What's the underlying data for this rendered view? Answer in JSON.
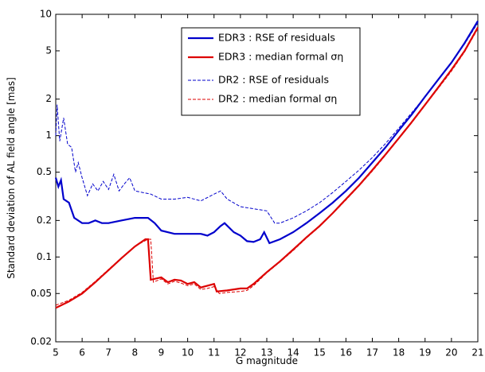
{
  "chart_data": {
    "type": "line",
    "x_label": "G magnitude",
    "y_label": "Standard deviation of AL field angle [mas]",
    "yscale": "log",
    "grid": false,
    "legend": "upper center",
    "xlim": [
      5,
      21
    ],
    "ylim": [
      0.02,
      10
    ],
    "xticks": [
      5,
      6,
      7,
      8,
      9,
      10,
      11,
      12,
      13,
      14,
      15,
      16,
      17,
      18,
      19,
      20,
      21
    ],
    "yticks": [
      0.02,
      0.05,
      0.1,
      0.2,
      0.5,
      1,
      2,
      5,
      10
    ],
    "series": [
      {
        "name": "EDR3 :  RSE of residuals",
        "color": "#0000cc",
        "dash": "solid",
        "x": [
          5,
          5.1,
          5.2,
          5.3,
          5.5,
          5.7,
          6,
          6.25,
          6.5,
          6.75,
          7,
          7.5,
          8,
          8.5,
          8.75,
          9,
          9.5,
          10,
          10.5,
          10.75,
          11,
          11.25,
          11.4,
          11.75,
          12,
          12.25,
          12.5,
          12.75,
          12.9,
          13.1,
          13.5,
          14,
          14.5,
          15,
          15.5,
          16,
          16.5,
          17,
          17.5,
          18,
          18.5,
          19,
          19.5,
          20,
          20.5,
          21
        ],
        "values": [
          0.45,
          0.38,
          0.43,
          0.3,
          0.28,
          0.21,
          0.19,
          0.19,
          0.2,
          0.19,
          0.19,
          0.2,
          0.21,
          0.21,
          0.19,
          0.165,
          0.155,
          0.155,
          0.155,
          0.15,
          0.16,
          0.18,
          0.19,
          0.16,
          0.15,
          0.135,
          0.133,
          0.14,
          0.16,
          0.13,
          0.14,
          0.16,
          0.19,
          0.23,
          0.28,
          0.35,
          0.45,
          0.6,
          0.8,
          1.1,
          1.5,
          2.1,
          2.9,
          4.0,
          5.8,
          8.8
        ]
      },
      {
        "name": "EDR3 :  median formal ση",
        "color": "#dd0000",
        "dash": "solid",
        "x": [
          5,
          5.5,
          6,
          6.5,
          7,
          7.5,
          8,
          8.4,
          8.5,
          8.6,
          9,
          9.25,
          9.5,
          9.75,
          10,
          10.25,
          10.5,
          10.75,
          11,
          11.1,
          11.5,
          12,
          12.25,
          12.5,
          13,
          13.5,
          14,
          14.5,
          15,
          15.5,
          16,
          16.5,
          17,
          17.5,
          18,
          18.5,
          19,
          19.5,
          20,
          20.5,
          21
        ],
        "values": [
          0.038,
          0.043,
          0.05,
          0.062,
          0.078,
          0.098,
          0.122,
          0.14,
          0.14,
          0.065,
          0.068,
          0.062,
          0.065,
          0.064,
          0.06,
          0.062,
          0.056,
          0.058,
          0.06,
          0.052,
          0.053,
          0.055,
          0.055,
          0.06,
          0.075,
          0.092,
          0.115,
          0.145,
          0.18,
          0.23,
          0.3,
          0.39,
          0.52,
          0.7,
          0.95,
          1.3,
          1.8,
          2.5,
          3.5,
          5.0,
          7.8
        ]
      },
      {
        "name": "DR2 :  RSE of residuals",
        "color": "#0000cc",
        "dash": "dashed",
        "x": [
          5,
          5.05,
          5.15,
          5.3,
          5.45,
          5.6,
          5.75,
          5.85,
          6,
          6.2,
          6.4,
          6.6,
          6.8,
          7,
          7.2,
          7.4,
          7.6,
          7.8,
          8,
          8.3,
          8.6,
          9,
          9.5,
          10,
          10.5,
          11,
          11.25,
          11.5,
          12,
          12.5,
          13,
          13.3,
          13.5,
          14,
          14.5,
          15,
          15.5,
          16,
          16.5,
          17,
          17.5,
          18,
          18.5,
          19,
          19.5,
          20,
          20.5,
          21
        ],
        "values": [
          1.0,
          1.8,
          0.9,
          1.4,
          0.85,
          0.8,
          0.5,
          0.6,
          0.45,
          0.32,
          0.4,
          0.35,
          0.42,
          0.36,
          0.48,
          0.35,
          0.4,
          0.45,
          0.35,
          0.34,
          0.33,
          0.3,
          0.3,
          0.31,
          0.29,
          0.33,
          0.35,
          0.3,
          0.26,
          0.25,
          0.24,
          0.19,
          0.19,
          0.21,
          0.24,
          0.28,
          0.34,
          0.42,
          0.52,
          0.66,
          0.86,
          1.15,
          1.55,
          2.1,
          2.9,
          4.0,
          5.7,
          8.5
        ]
      },
      {
        "name": "DR2 :  median formal ση",
        "color": "#dd0000",
        "dash": "dashed",
        "x": [
          5,
          5.5,
          6,
          6.5,
          7,
          7.5,
          8,
          8.5,
          8.6,
          8.7,
          9,
          9.25,
          9.5,
          9.75,
          10,
          10.25,
          10.5,
          10.75,
          11,
          11.2,
          11.5,
          12,
          12.25,
          12.5,
          13,
          13.5,
          14,
          14.5,
          15,
          15.5,
          16,
          16.5,
          17,
          17.5,
          18,
          18.5,
          19,
          19.5,
          20,
          20.5,
          21
        ],
        "values": [
          0.04,
          0.044,
          0.051,
          0.063,
          0.079,
          0.099,
          0.123,
          0.14,
          0.14,
          0.062,
          0.066,
          0.06,
          0.063,
          0.061,
          0.058,
          0.06,
          0.054,
          0.055,
          0.057,
          0.05,
          0.051,
          0.052,
          0.053,
          0.058,
          0.074,
          0.091,
          0.113,
          0.143,
          0.178,
          0.228,
          0.295,
          0.385,
          0.51,
          0.69,
          0.94,
          1.28,
          1.78,
          2.45,
          3.4,
          4.9,
          7.6
        ]
      }
    ]
  }
}
